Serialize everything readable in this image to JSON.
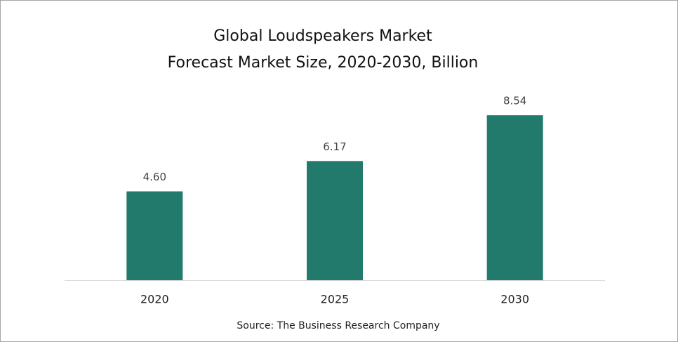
{
  "chart_data": {
    "type": "bar",
    "title": "Global Loudspeakers Market",
    "subtitle": "Forecast Market Size, 2020-2030, Billion",
    "categories": [
      "2020",
      "2025",
      "2030"
    ],
    "values": [
      4.6,
      6.17,
      8.54
    ],
    "value_labels": [
      "4.60",
      "6.17",
      "8.54"
    ],
    "color": "#217a6b",
    "source": "Source: The Business Research Company"
  }
}
